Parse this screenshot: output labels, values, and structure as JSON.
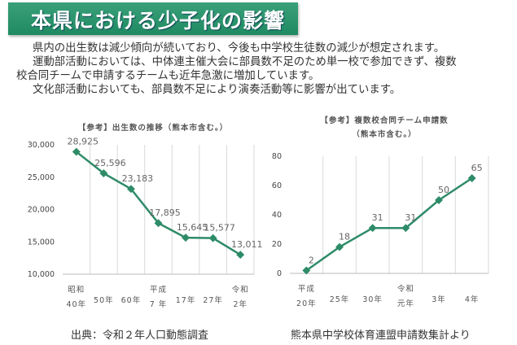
{
  "header": {
    "title": "本県における少子化の影響"
  },
  "body": {
    "p1": "県内の出生数は減少傾向が続いており、今後も中学校生徒数の減少が想定されます。",
    "p2a": "運動部活動においては、中体連主催大会に部員数不足のため単一校で参加できず、複数",
    "p2b": "校合同チームで申請するチームも近年急激に増加しています。",
    "p3": "文化部活動においても、部員数不足により演奏活動等に影響が出ています。"
  },
  "colors": {
    "line": "#2e8b68",
    "grid": "#d9d9d9"
  },
  "chart_data": [
    {
      "type": "line",
      "title": [
        "【参考】出生数の推移（熊本市含む。）"
      ],
      "categories": [
        [
          "昭和",
          "40年"
        ],
        [
          "",
          "50年"
        ],
        [
          "",
          "60年"
        ],
        [
          "平成",
          "7 年"
        ],
        [
          "",
          "17年"
        ],
        [
          "",
          "27年"
        ],
        [
          "令和",
          "2年"
        ]
      ],
      "values": [
        28925,
        25596,
        23183,
        17895,
        15645,
        15577,
        13011
      ],
      "labels": [
        "28,925",
        "25,596",
        "23,183",
        "17,895",
        "15,645",
        "15,577",
        "13,011"
      ],
      "yticks": [
        "10,000",
        "15,000",
        "20,000",
        "25,000",
        "30,000"
      ],
      "ylim": [
        10000,
        30000
      ],
      "source": "出典：令和２年人口動態調査"
    },
    {
      "type": "line",
      "title": [
        "【参考】複数校合同チーム申請数",
        "（熊本市含む。）"
      ],
      "categories": [
        [
          "平成",
          "20年"
        ],
        [
          "",
          "25年"
        ],
        [
          "",
          "30年"
        ],
        [
          "令和",
          "元年"
        ],
        [
          "",
          "3年"
        ],
        [
          "",
          "4年"
        ]
      ],
      "values": [
        2,
        18,
        31,
        31,
        50,
        65
      ],
      "labels": [
        "2",
        "18",
        "31",
        "31",
        "50",
        "65"
      ],
      "yticks": [
        "0",
        "20",
        "40",
        "60",
        "80"
      ],
      "ylim": [
        0,
        80
      ],
      "source": "熊本県中学校体育連盟申請数集計より"
    }
  ]
}
